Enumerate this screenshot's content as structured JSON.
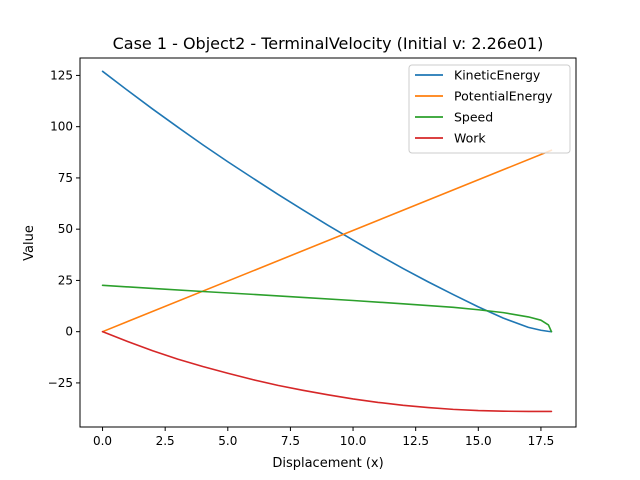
{
  "chart_data": {
    "type": "line",
    "title": "Case 1 - Object2 - TerminalVelocity (Initial v: 2.26e01)",
    "xlabel": "Displacement (x)",
    "ylabel": "Value",
    "xlim": [
      -0.9,
      18.9
    ],
    "ylim": [
      -46.5,
      133.5
    ],
    "xticks": [
      0.0,
      2.5,
      5.0,
      7.5,
      10.0,
      12.5,
      15.0,
      17.5
    ],
    "xtick_labels": [
      "0.0",
      "2.5",
      "5.0",
      "7.5",
      "10.0",
      "12.5",
      "15.0",
      "17.5"
    ],
    "yticks": [
      -25,
      0,
      25,
      50,
      75,
      100,
      125
    ],
    "ytick_labels": [
      "−25",
      "0",
      "25",
      "50",
      "75",
      "100",
      "125"
    ],
    "grid": false,
    "legend_position": "top-right",
    "series": [
      {
        "name": "KineticEnergy",
        "color": "#1f77b4",
        "x": [
          0,
          1,
          2,
          3,
          4,
          5,
          6,
          7,
          8,
          9,
          10,
          11,
          12,
          13,
          14,
          15,
          16,
          17,
          17.5,
          17.8,
          17.92
        ],
        "y": [
          127,
          117.7,
          108.6,
          99.8,
          91.2,
          82.9,
          74.9,
          67.0,
          59.4,
          51.9,
          44.7,
          37.6,
          30.8,
          24.3,
          18.1,
          12.1,
          6.6,
          2.1,
          0.7,
          0.15,
          0
        ]
      },
      {
        "name": "PotentialEnergy",
        "color": "#ff7f0e",
        "x": [
          0,
          17.92
        ],
        "y": [
          0,
          88.5
        ]
      },
      {
        "name": "Speed",
        "color": "#2ca02c",
        "x": [
          0,
          2,
          4,
          6,
          8,
          10,
          12,
          14,
          15,
          16,
          17,
          17.5,
          17.8,
          17.92
        ],
        "y": [
          22.6,
          21.1,
          19.6,
          18.2,
          16.7,
          15.2,
          13.6,
          11.9,
          10.7,
          9.3,
          7.2,
          5.6,
          3.3,
          0
        ]
      },
      {
        "name": "Work",
        "color": "#d62728",
        "x": [
          0,
          1,
          2,
          3,
          4,
          5,
          6,
          7,
          8,
          9,
          10,
          11,
          12,
          13,
          14,
          15,
          16,
          17,
          17.92
        ],
        "y": [
          0,
          -4.8,
          -9.3,
          -13.4,
          -17.0,
          -20.3,
          -23.4,
          -26.2,
          -28.6,
          -30.8,
          -32.8,
          -34.5,
          -35.9,
          -37.0,
          -37.9,
          -38.5,
          -38.8,
          -38.9,
          -38.9
        ]
      }
    ]
  }
}
